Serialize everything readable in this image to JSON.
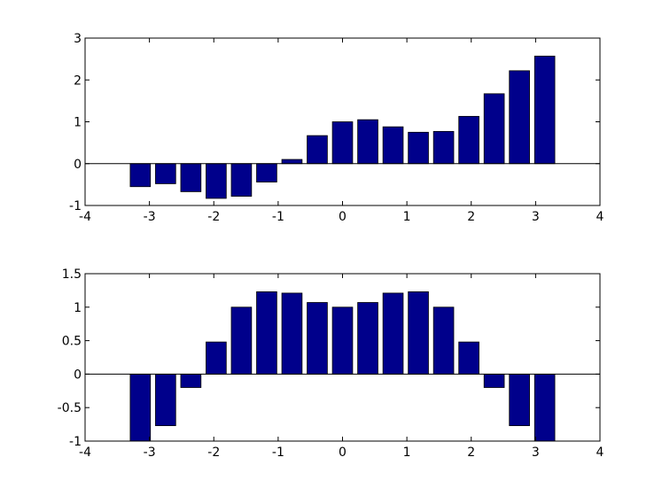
{
  "chart_data": [
    {
      "type": "bar",
      "x": [
        -3.1416,
        -2.7489,
        -2.3562,
        -1.9635,
        -1.5708,
        -1.1781,
        -0.7854,
        -0.3927,
        0,
        0.3927,
        0.7854,
        1.1781,
        1.5708,
        1.9635,
        2.3562,
        2.7489,
        3.1416
      ],
      "values": [
        -0.55,
        -0.48,
        -0.67,
        -0.83,
        -0.78,
        -0.44,
        0.1,
        0.67,
        1.0,
        1.05,
        0.88,
        0.75,
        0.77,
        1.13,
        1.67,
        2.22,
        2.57
      ],
      "color": "#00008b",
      "xlim": [
        -4,
        4
      ],
      "xticks": [
        -4,
        -3,
        -2,
        -1,
        0,
        1,
        2,
        3,
        4
      ],
      "ylim": [
        -1,
        3
      ],
      "yticks": [
        -1,
        0,
        1,
        2,
        3
      ]
    },
    {
      "type": "bar",
      "x": [
        -3.1416,
        -2.7489,
        -2.3562,
        -1.9635,
        -1.5708,
        -1.1781,
        -0.7854,
        -0.3927,
        0,
        0.3927,
        0.7854,
        1.1781,
        1.5708,
        1.9635,
        2.3562,
        2.7489,
        3.1416
      ],
      "values": [
        -1,
        -0.77,
        -0.2,
        0.48,
        1.0,
        1.23,
        1.21,
        1.07,
        1.0,
        1.07,
        1.21,
        1.23,
        1.0,
        0.48,
        -0.2,
        -0.77,
        -1
      ],
      "color": "#00008b",
      "xlim": [
        -4,
        4
      ],
      "xticks": [
        -4,
        -3,
        -2,
        -1,
        0,
        1,
        2,
        3,
        4
      ],
      "ylim": [
        -1,
        1.5
      ],
      "yticks": [
        -1,
        -0.5,
        0,
        0.5,
        1,
        1.5
      ]
    }
  ]
}
